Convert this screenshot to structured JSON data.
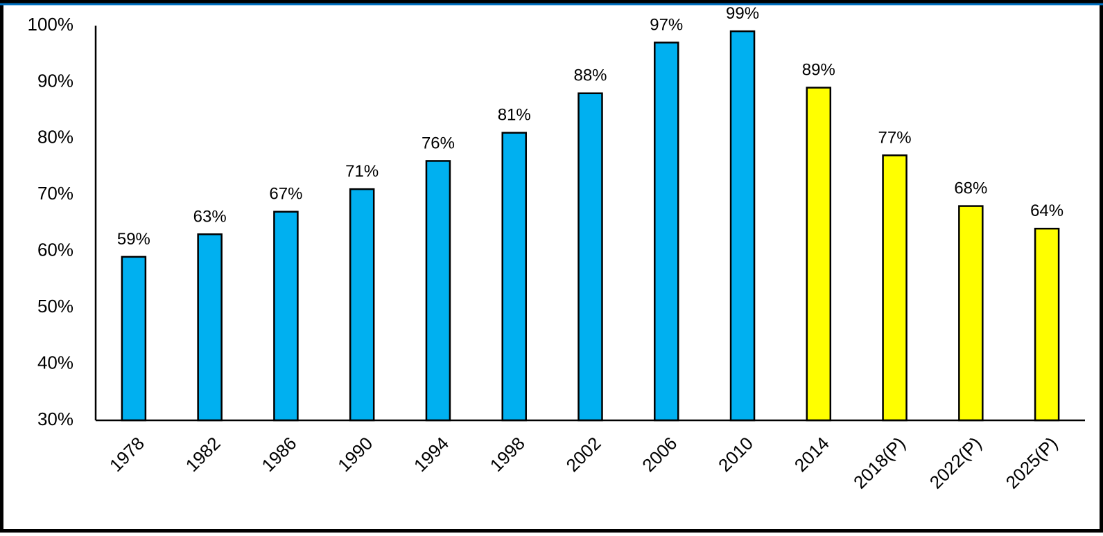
{
  "chart_data": {
    "type": "bar",
    "categories": [
      "1978",
      "1982",
      "1986",
      "1990",
      "1994",
      "1998",
      "2002",
      "2006",
      "2010",
      "2014",
      "2018(P)",
      "2022(P)",
      "2025(P)"
    ],
    "values": [
      59,
      63,
      67,
      71,
      76,
      81,
      88,
      97,
      99,
      89,
      77,
      68,
      64
    ],
    "value_labels": [
      "59%",
      "63%",
      "67%",
      "71%",
      "76%",
      "81%",
      "88%",
      "97%",
      "99%",
      "89%",
      "77%",
      "68%",
      "64%"
    ],
    "colors": [
      "#00b0f0",
      "#00b0f0",
      "#00b0f0",
      "#00b0f0",
      "#00b0f0",
      "#00b0f0",
      "#00b0f0",
      "#00b0f0",
      "#00b0f0",
      "#ffff00",
      "#ffff00",
      "#ffff00",
      "#ffff00"
    ],
    "ylim": [
      30,
      100
    ],
    "yticks": [
      {
        "value": 30,
        "label": "30%"
      },
      {
        "value": 40,
        "label": "40%"
      },
      {
        "value": 50,
        "label": "50%"
      },
      {
        "value": 60,
        "label": "60%"
      },
      {
        "value": 70,
        "label": "70%"
      },
      {
        "value": 80,
        "label": "80%"
      },
      {
        "value": 90,
        "label": "90%"
      },
      {
        "value": 100,
        "label": "100%"
      }
    ],
    "grid": false
  }
}
